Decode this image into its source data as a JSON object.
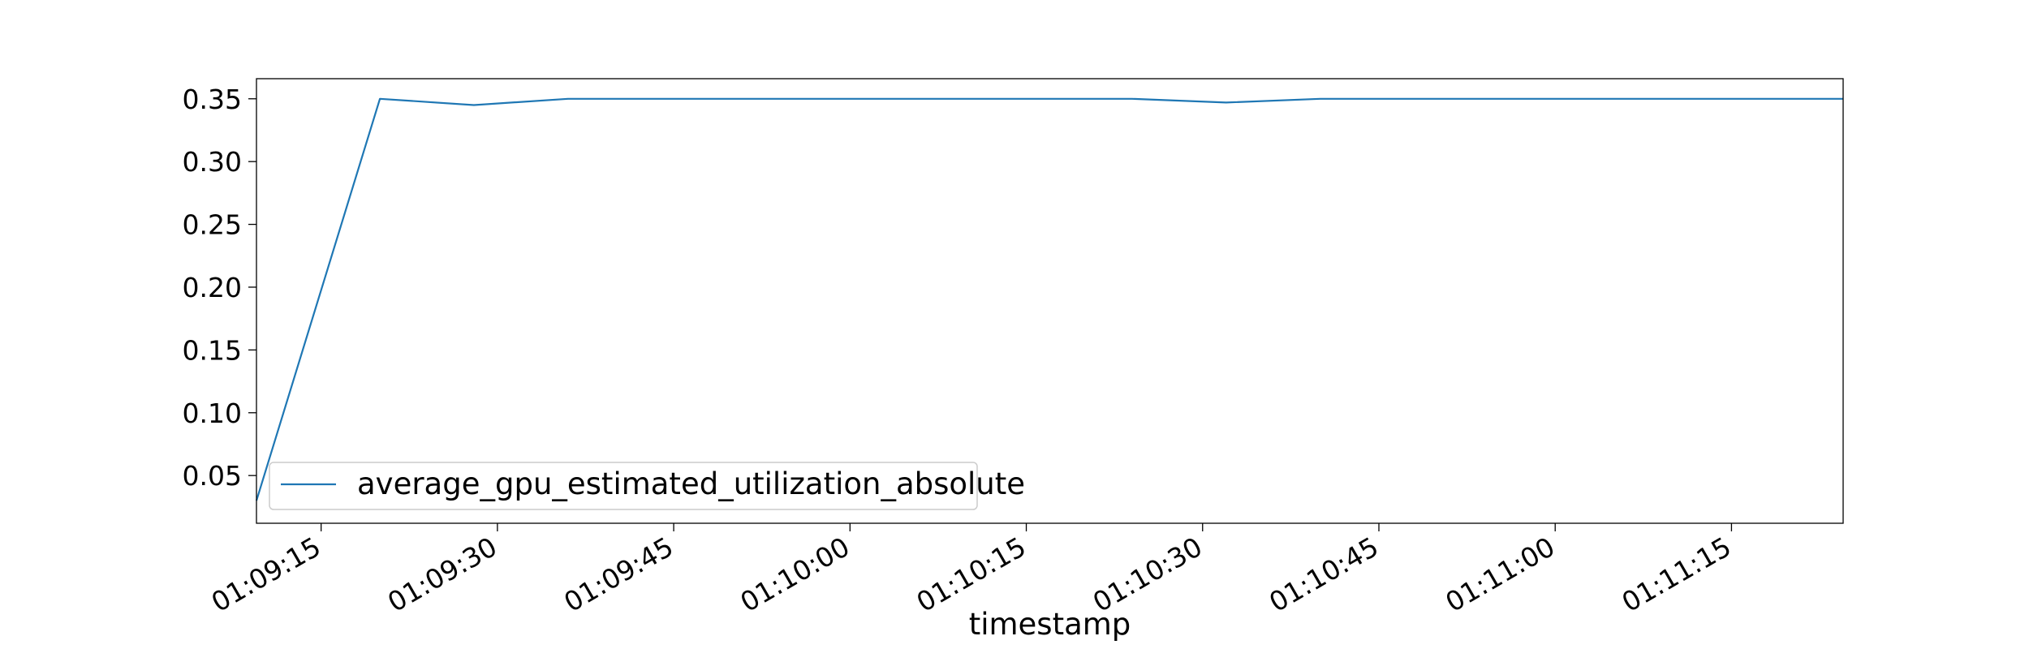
{
  "chart_data": {
    "type": "line",
    "title": "",
    "xlabel": "timestamp",
    "ylabel": "",
    "x_ticks": [
      "01:09:15",
      "01:09:30",
      "01:09:45",
      "01:10:00",
      "01:10:15",
      "01:10:30",
      "01:10:45",
      "01:11:00",
      "01:11:15"
    ],
    "y_ticks": [
      "0.05",
      "0.10",
      "0.15",
      "0.20",
      "0.25",
      "0.30",
      "0.35"
    ],
    "xlim": [
      "01:09:09.5",
      "01:11:24.5"
    ],
    "ylim": [
      0.012,
      0.366
    ],
    "grid": false,
    "legend_position": "lower-left",
    "series": [
      {
        "name": "average_gpu_estimated_utilization_absolute",
        "color": "#1f77b4",
        "x": [
          "01:09:09.5",
          "01:09:20",
          "01:09:28",
          "01:09:36",
          "01:09:44",
          "01:09:52",
          "01:10:00",
          "01:10:08",
          "01:10:16",
          "01:10:24",
          "01:10:32",
          "01:10:40",
          "01:10:48",
          "01:10:56",
          "01:11:04",
          "01:11:12",
          "01:11:20",
          "01:11:24.5"
        ],
        "y": [
          0.03,
          0.35,
          0.345,
          0.35,
          0.35,
          0.35,
          0.35,
          0.35,
          0.35,
          0.35,
          0.347,
          0.35,
          0.35,
          0.35,
          0.35,
          0.35,
          0.35,
          0.35
        ]
      }
    ]
  }
}
